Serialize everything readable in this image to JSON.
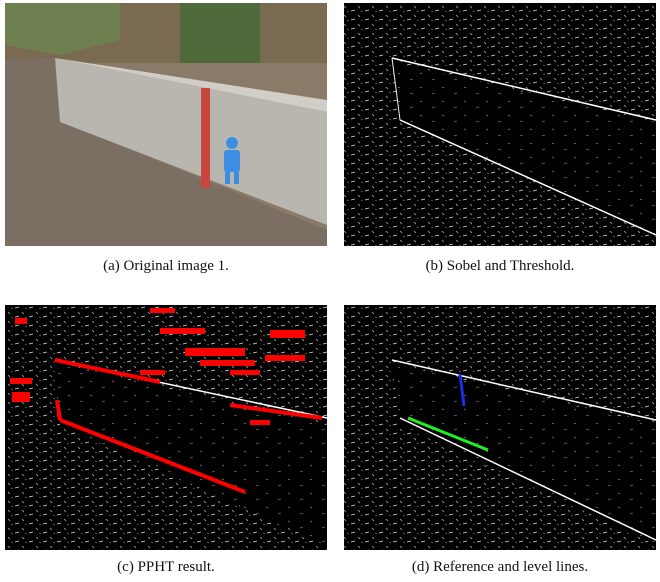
{
  "figures": [
    {
      "caption": "(a) Original image 1."
    },
    {
      "caption": "(b) Sobel and Threshold."
    },
    {
      "caption": "(c) PPHT result."
    },
    {
      "caption": "(d) Reference and level lines."
    }
  ]
}
